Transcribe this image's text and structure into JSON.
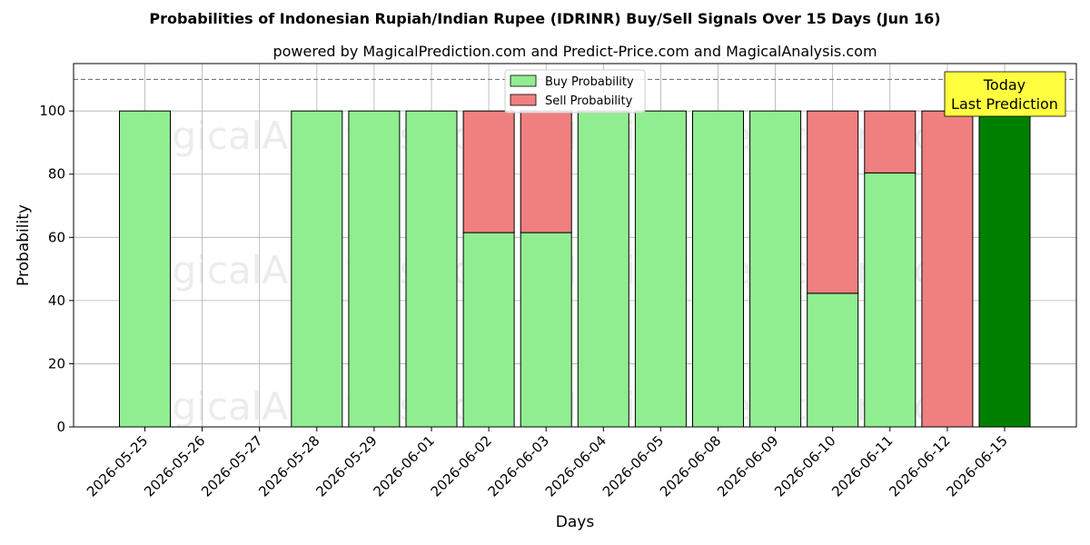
{
  "chart_data": {
    "type": "bar",
    "stacked": true,
    "title": "Probabilities of Indonesian Rupiah/Indian Rupee (IDRINR) Buy/Sell Signals Over 15 Days (Jun 16)",
    "subtitle": "powered by MagicalPrediction.com and Predict-Price.com and MagicalAnalysis.com",
    "xlabel": "Days",
    "ylabel": "Probability",
    "ylim": [
      0,
      115
    ],
    "yticks": [
      "0",
      "20",
      "40",
      "60",
      "80",
      "100"
    ],
    "categories": [
      "2026-05-25",
      "2026-05-26",
      "2026-05-27",
      "2026-05-28",
      "2026-05-29",
      "2026-06-01",
      "2026-06-02",
      "2026-06-03",
      "2026-06-04",
      "2026-06-05",
      "2026-06-08",
      "2026-06-09",
      "2026-06-10",
      "2026-06-11",
      "2026-06-12",
      "2026-06-15"
    ],
    "series": [
      {
        "name": "Buy Probability",
        "color": "#90ee90",
        "values": [
          100,
          0,
          0,
          100,
          100,
          100,
          61.5,
          61.5,
          100,
          100,
          100,
          100,
          42.3,
          80.4,
          0,
          100
        ]
      },
      {
        "name": "Sell Probability",
        "color": "#f08080",
        "values": [
          0,
          0,
          0,
          0,
          0,
          0,
          38.5,
          38.5,
          0,
          0,
          0,
          0,
          57.7,
          19.6,
          100,
          0
        ]
      }
    ],
    "highlight": {
      "category": "2026-06-15",
      "color": "#008000"
    },
    "reference_line": {
      "y": 110,
      "style": "dashed"
    },
    "grid": true,
    "legend_position": "top-center",
    "annotation": {
      "line1": "Today",
      "line2": "Last Prediction",
      "background": "#ffff40"
    },
    "watermarks": [
      "MagicalAnalysis.com",
      "MagicalPrediction.com"
    ]
  }
}
